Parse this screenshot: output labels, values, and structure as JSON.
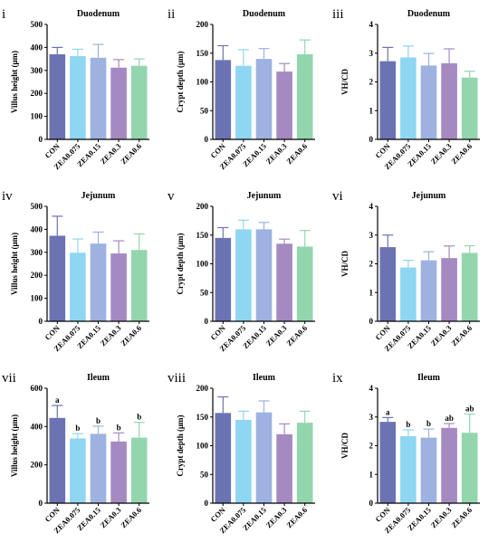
{
  "colors": [
    "#6b73b3",
    "#8ed6f2",
    "#9db2e0",
    "#a58ac2",
    "#93d6ae"
  ],
  "chart_data": [
    {
      "panel": "i",
      "type": "bar",
      "title": "Duodenum",
      "ylabel": "Villus height (μm)",
      "ylim": [
        0,
        500
      ],
      "yticks": [
        0,
        100,
        200,
        300,
        400,
        500
      ],
      "categories": [
        "CON",
        "ZEA0.075",
        "ZEA0.15",
        "ZEA0.3",
        "ZEA0.6"
      ],
      "values": [
        370,
        362,
        355,
        312,
        320
      ],
      "errors": [
        30,
        30,
        58,
        35,
        30
      ],
      "labels": []
    },
    {
      "panel": "ii",
      "type": "bar",
      "title": "Duodenum",
      "ylabel": "Crypt depth (μm)",
      "ylim": [
        0,
        200
      ],
      "yticks": [
        0,
        50,
        100,
        150,
        200
      ],
      "categories": [
        "CON",
        "ZEA0.075",
        "ZEA0.15",
        "ZEA0.3",
        "ZEA0.6"
      ],
      "values": [
        138,
        128,
        140,
        118,
        148
      ],
      "errors": [
        25,
        28,
        18,
        14,
        25
      ],
      "labels": []
    },
    {
      "panel": "iii",
      "type": "bar",
      "title": "Duodenum",
      "ylabel": "VH/CD",
      "ylim": [
        0,
        4
      ],
      "yticks": [
        0,
        1,
        2,
        3,
        4
      ],
      "categories": [
        "CON",
        "ZEA0.075",
        "ZEA0.15",
        "ZEA0.3",
        "ZEA0.6"
      ],
      "values": [
        2.72,
        2.85,
        2.57,
        2.65,
        2.15
      ],
      "errors": [
        0.48,
        0.4,
        0.42,
        0.5,
        0.22
      ],
      "labels": []
    },
    {
      "panel": "iv",
      "type": "bar",
      "title": "Jejunum",
      "ylabel": "Villus height (μm)",
      "ylim": [
        0,
        500
      ],
      "yticks": [
        0,
        100,
        200,
        300,
        400,
        500
      ],
      "categories": [
        "CON",
        "ZEA0.075",
        "ZEA0.15",
        "ZEA0.3",
        "ZEA0.6"
      ],
      "values": [
        372,
        298,
        338,
        295,
        310
      ],
      "errors": [
        85,
        60,
        50,
        55,
        70
      ],
      "labels": []
    },
    {
      "panel": "v",
      "type": "bar",
      "title": "Jejunum",
      "ylabel": "Crypt depth (μm)",
      "ylim": [
        0,
        200
      ],
      "yticks": [
        0,
        50,
        100,
        150,
        200
      ],
      "categories": [
        "CON",
        "ZEA0.075",
        "ZEA0.15",
        "ZEA0.3",
        "ZEA0.6"
      ],
      "values": [
        145,
        160,
        160,
        135,
        130
      ],
      "errors": [
        18,
        16,
        12,
        8,
        28
      ],
      "labels": []
    },
    {
      "panel": "vi",
      "type": "bar",
      "title": "Jejunum",
      "ylabel": "VH/CD",
      "ylim": [
        0,
        4
      ],
      "yticks": [
        0,
        1,
        2,
        3,
        4
      ],
      "categories": [
        "CON",
        "ZEA0.075",
        "ZEA0.15",
        "ZEA0.3",
        "ZEA0.6"
      ],
      "values": [
        2.58,
        1.87,
        2.12,
        2.2,
        2.38
      ],
      "errors": [
        0.42,
        0.25,
        0.3,
        0.42,
        0.25
      ],
      "labels": []
    },
    {
      "panel": "vii",
      "type": "bar",
      "title": "Ileum",
      "ylabel": "Villus height (μm)",
      "ylim": [
        0,
        600
      ],
      "yticks": [
        0,
        200,
        400,
        600
      ],
      "categories": [
        "CON",
        "ZEA0.075",
        "ZEA0.15",
        "ZEA0.3",
        "ZEA0.6"
      ],
      "values": [
        445,
        338,
        362,
        322,
        342
      ],
      "errors": [
        65,
        25,
        40,
        45,
        80
      ],
      "labels": [
        "a",
        "b",
        "b",
        "b",
        "b"
      ]
    },
    {
      "panel": "viii",
      "type": "bar",
      "title": "Ileum",
      "ylabel": "Crypt depth (μm)",
      "ylim": [
        0,
        200
      ],
      "yticks": [
        0,
        50,
        100,
        150,
        200
      ],
      "categories": [
        "CON",
        "ZEA0.075",
        "ZEA0.15",
        "ZEA0.3",
        "ZEA0.6"
      ],
      "values": [
        157,
        145,
        158,
        120,
        140
      ],
      "errors": [
        28,
        15,
        20,
        18,
        20
      ],
      "labels": []
    },
    {
      "panel": "ix",
      "type": "bar",
      "title": "Ileum",
      "ylabel": "VH/CD",
      "ylim": [
        0,
        4
      ],
      "yticks": [
        0,
        1,
        2,
        3,
        4
      ],
      "categories": [
        "CON",
        "ZEA0.075",
        "ZEA0.15",
        "ZEA0.3",
        "ZEA0.6"
      ],
      "values": [
        2.83,
        2.33,
        2.28,
        2.62,
        2.45
      ],
      "errors": [
        0.15,
        0.22,
        0.3,
        0.15,
        0.65
      ],
      "labels": [
        "a",
        "b",
        "b",
        "ab",
        "ab"
      ]
    }
  ]
}
